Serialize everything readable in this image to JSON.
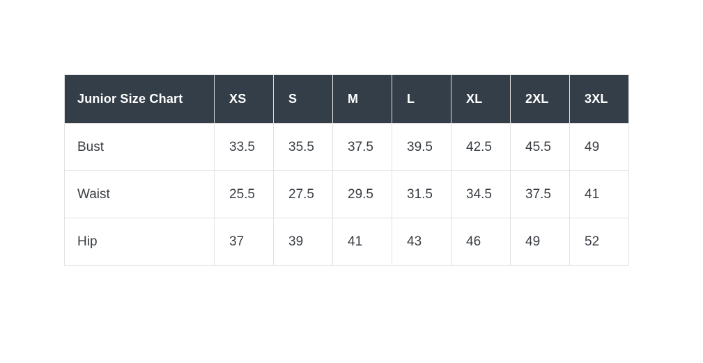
{
  "chart_data": {
    "type": "table",
    "title": "Junior Size Chart",
    "columns": [
      "Junior Size Chart",
      "XS",
      "S",
      "M",
      "L",
      "XL",
      "2XL",
      "3XL"
    ],
    "rows": [
      [
        "Bust",
        33.5,
        35.5,
        37.5,
        39.5,
        42.5,
        45.5,
        49
      ],
      [
        "Waist",
        25.5,
        27.5,
        29.5,
        31.5,
        34.5,
        37.5,
        41
      ],
      [
        "Hip",
        37,
        39,
        41,
        43,
        46,
        49,
        52
      ]
    ]
  },
  "table": {
    "corner_label": "Junior Size Chart",
    "size_columns": [
      "XS",
      "S",
      "M",
      "L",
      "XL",
      "2XL",
      "3XL"
    ],
    "rows": [
      {
        "label": "Bust",
        "values": [
          "33.5",
          "35.5",
          "37.5",
          "39.5",
          "42.5",
          "45.5",
          "49"
        ]
      },
      {
        "label": "Waist",
        "values": [
          "25.5",
          "27.5",
          "29.5",
          "31.5",
          "34.5",
          "37.5",
          "41"
        ]
      },
      {
        "label": "Hip",
        "values": [
          "37",
          "39",
          "41",
          "43",
          "46",
          "49",
          "52"
        ]
      }
    ],
    "colors": {
      "header_bg": "#343e48",
      "header_text": "#ffffff",
      "body_text": "#383d43",
      "border": "#e1e1e1",
      "page_bg": "#ffffff"
    }
  }
}
